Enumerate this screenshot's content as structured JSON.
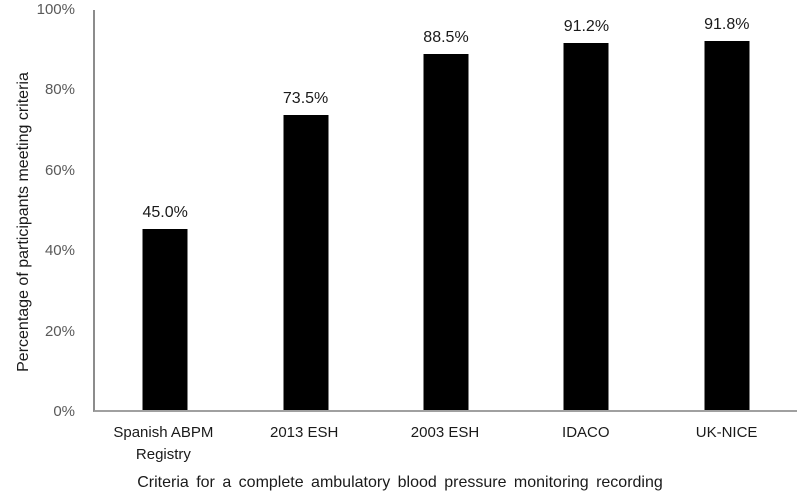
{
  "chart_data": {
    "type": "bar",
    "categories": [
      "Spanish ABPM Registry",
      "2013 ESH",
      "2003 ESH",
      "IDACO",
      "UK-NICE"
    ],
    "values": [
      45.0,
      73.5,
      88.5,
      91.2,
      91.8
    ],
    "data_labels": [
      "45.0%",
      "73.5%",
      "88.5%",
      "91.2%",
      "91.8%"
    ],
    "title": "",
    "xlabel": "Criteria for a complete ambulatory blood pressure monitoring recording",
    "ylabel": "Percentage of participants meeting criteria",
    "ylim": [
      0,
      100
    ],
    "yticks": [
      {
        "value": 0,
        "label": "0%"
      },
      {
        "value": 20,
        "label": "20%"
      },
      {
        "value": 40,
        "label": "40%"
      },
      {
        "value": 60,
        "label": "60%"
      },
      {
        "value": 80,
        "label": "80%"
      },
      {
        "value": 100,
        "label": "100%"
      }
    ],
    "grid": false,
    "legend": "none",
    "colors": {
      "bar_fill": "#000000",
      "axis_line": "#8c8c8c",
      "tick_label": "#595959",
      "data_label": "#1a1a1a",
      "background": "#ffffff"
    }
  }
}
